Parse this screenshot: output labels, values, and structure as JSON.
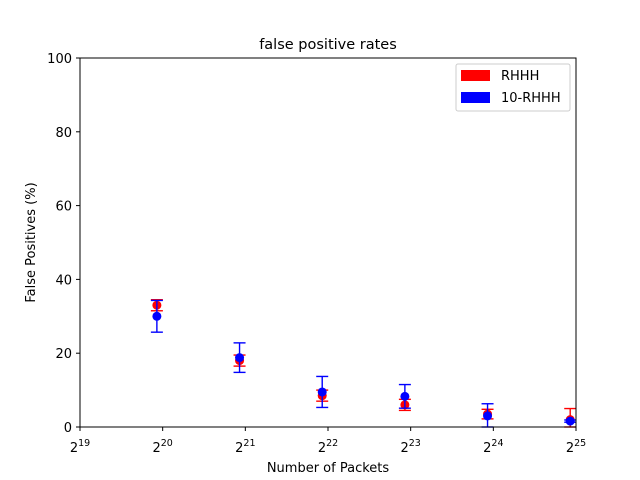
{
  "chart_data": {
    "type": "scatter",
    "title": "false positive rates",
    "xlabel": "Number of Packets",
    "ylabel": "False Positives (%)",
    "x_scale": "log2",
    "x_ticks": [
      {
        "exp": 19,
        "base": "2",
        "sup": "19"
      },
      {
        "exp": 20,
        "base": "2",
        "sup": "20"
      },
      {
        "exp": 21,
        "base": "2",
        "sup": "21"
      },
      {
        "exp": 22,
        "base": "2",
        "sup": "22"
      },
      {
        "exp": 23,
        "base": "2",
        "sup": "23"
      },
      {
        "exp": 24,
        "base": "2",
        "sup": "24"
      },
      {
        "exp": 25,
        "base": "2",
        "sup": "25"
      }
    ],
    "xlim": [
      19,
      25
    ],
    "ylim": [
      0,
      100
    ],
    "y_ticks": [
      0,
      20,
      40,
      60,
      80,
      100
    ],
    "legend_position": "top-right",
    "series": [
      {
        "name": "RHHH",
        "color": "#ff0000",
        "points": [
          {
            "x": 19.93,
            "y": 33.0,
            "err": 1.5
          },
          {
            "x": 20.93,
            "y": 18.0,
            "err": 1.5
          },
          {
            "x": 21.93,
            "y": 8.5,
            "err": 1.5
          },
          {
            "x": 22.93,
            "y": 6.0,
            "err": 1.5
          },
          {
            "x": 23.93,
            "y": 3.5,
            "err": 1.3
          },
          {
            "x": 24.93,
            "y": 2.0,
            "err": 3.0
          }
        ]
      },
      {
        "name": "10-RHHH",
        "color": "#0000ff",
        "points": [
          {
            "x": 19.93,
            "y": 30.0,
            "err": 4.3
          },
          {
            "x": 20.93,
            "y": 18.8,
            "err": 4.0
          },
          {
            "x": 21.93,
            "y": 9.5,
            "err": 4.2
          },
          {
            "x": 22.93,
            "y": 8.3,
            "err": 3.2
          },
          {
            "x": 23.93,
            "y": 3.0,
            "err": 3.3
          },
          {
            "x": 24.93,
            "y": 1.6,
            "err": 0.3
          }
        ]
      }
    ]
  }
}
